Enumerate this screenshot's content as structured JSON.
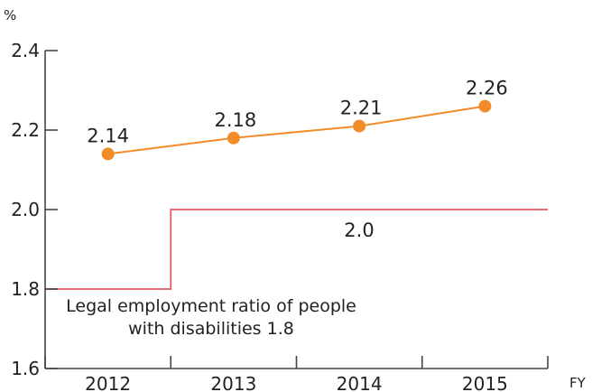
{
  "chart_data": {
    "type": "line",
    "y_unit": "%",
    "x_unit": "FY",
    "categories": [
      "2012",
      "2013",
      "2014",
      "2015"
    ],
    "ylim": [
      1.6,
      2.4
    ],
    "yticks": [
      "1.6",
      "1.8",
      "2.0",
      "2.2",
      "2.4"
    ],
    "grid": false,
    "legend": "none",
    "series": [
      {
        "values": [
          2.14,
          2.18,
          2.21,
          2.26
        ],
        "labels": [
          "2.14",
          "2.18",
          "2.21",
          "2.26"
        ],
        "color": "#f28c28"
      }
    ],
    "reference": {
      "color": "#e05a6a",
      "before_value": 1.8,
      "after_value": 2.0,
      "after_label": "2.0",
      "note_line1": "Legal employment ratio of people",
      "note_line2": "with disabilities 1.8"
    }
  }
}
